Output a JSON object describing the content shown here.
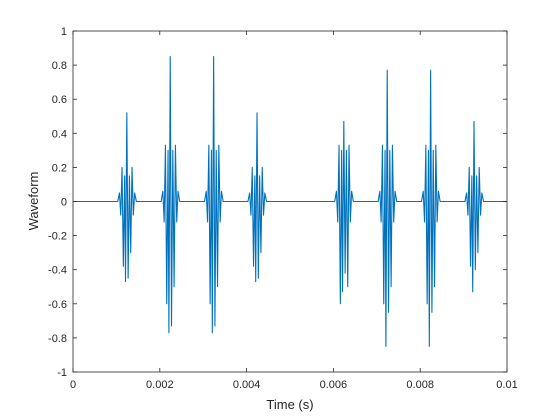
{
  "chart_data": {
    "type": "line",
    "title": "",
    "xlabel": "Time (s)",
    "ylabel": "Waveform",
    "xlim": [
      0,
      0.01
    ],
    "ylim": [
      -1,
      1
    ],
    "grid": false,
    "legend": "none",
    "x_ticks": [
      0,
      0.002,
      0.004,
      0.006,
      0.008,
      0.01
    ],
    "x_tick_labels": [
      "0",
      "0.002",
      "0.004",
      "0.006",
      "0.008",
      "0.01"
    ],
    "y_ticks": [
      -1,
      -0.8,
      -0.6,
      -0.4,
      -0.2,
      0,
      0.2,
      0.4,
      0.6,
      0.8,
      1
    ],
    "y_tick_labels": [
      "-1",
      "-0.8",
      "-0.6",
      "-0.4",
      "-0.2",
      "0",
      "0.2",
      "0.4",
      "0.6",
      "0.8",
      "1"
    ],
    "series_color": "#0072BD",
    "series": [
      {
        "points": [
          [
            0,
            0
          ],
          [
            0.00103,
            0
          ],
          [
            0.00107,
            0.05
          ],
          [
            0.0011,
            -0.08
          ],
          [
            0.00113,
            0.2
          ],
          [
            0.00116,
            -0.38
          ],
          [
            0.00119,
            0.15
          ],
          [
            0.00121,
            -0.47
          ],
          [
            0.00124,
            0.52
          ],
          [
            0.00127,
            -0.45
          ],
          [
            0.0013,
            0.15
          ],
          [
            0.00133,
            -0.3
          ],
          [
            0.00136,
            0.2
          ],
          [
            0.00139,
            -0.08
          ],
          [
            0.00142,
            0.05
          ],
          [
            0.00146,
            0
          ],
          [
            0.00203,
            0
          ],
          [
            0.00207,
            0.06
          ],
          [
            0.0021,
            -0.12
          ],
          [
            0.00213,
            0.33
          ],
          [
            0.00216,
            -0.6
          ],
          [
            0.00219,
            0.3
          ],
          [
            0.00221,
            -0.77
          ],
          [
            0.00224,
            0.85
          ],
          [
            0.00227,
            -0.73
          ],
          [
            0.0023,
            0.3
          ],
          [
            0.00233,
            -0.5
          ],
          [
            0.00236,
            0.33
          ],
          [
            0.00239,
            -0.12
          ],
          [
            0.00242,
            0.06
          ],
          [
            0.00246,
            0
          ],
          [
            0.00303,
            0
          ],
          [
            0.00307,
            0.06
          ],
          [
            0.0031,
            -0.12
          ],
          [
            0.00313,
            0.33
          ],
          [
            0.00316,
            -0.6
          ],
          [
            0.00319,
            0.3
          ],
          [
            0.00321,
            -0.77
          ],
          [
            0.00324,
            0.85
          ],
          [
            0.00327,
            -0.73
          ],
          [
            0.0033,
            0.3
          ],
          [
            0.00333,
            -0.5
          ],
          [
            0.00336,
            0.33
          ],
          [
            0.00339,
            -0.12
          ],
          [
            0.00342,
            0.06
          ],
          [
            0.00346,
            0
          ],
          [
            0.00403,
            0
          ],
          [
            0.00407,
            0.05
          ],
          [
            0.0041,
            -0.08
          ],
          [
            0.00413,
            0.2
          ],
          [
            0.00416,
            -0.38
          ],
          [
            0.00419,
            0.15
          ],
          [
            0.00421,
            -0.47
          ],
          [
            0.00424,
            0.52
          ],
          [
            0.00427,
            -0.45
          ],
          [
            0.0043,
            0.15
          ],
          [
            0.00433,
            -0.3
          ],
          [
            0.00436,
            0.2
          ],
          [
            0.00439,
            -0.08
          ],
          [
            0.00442,
            0.05
          ],
          [
            0.00446,
            0
          ],
          [
            0.00603,
            0
          ],
          [
            0.00607,
            0.06
          ],
          [
            0.0061,
            -0.12
          ],
          [
            0.00613,
            0.33
          ],
          [
            0.00616,
            -0.6
          ],
          [
            0.00619,
            0.3
          ],
          [
            0.00621,
            -0.53
          ],
          [
            0.00624,
            0.47
          ],
          [
            0.00627,
            -0.42
          ],
          [
            0.0063,
            0.3
          ],
          [
            0.00633,
            -0.5
          ],
          [
            0.00636,
            0.33
          ],
          [
            0.00639,
            -0.12
          ],
          [
            0.00642,
            0.06
          ],
          [
            0.00646,
            0
          ],
          [
            0.00703,
            0
          ],
          [
            0.00707,
            0.06
          ],
          [
            0.0071,
            -0.12
          ],
          [
            0.00713,
            0.33
          ],
          [
            0.00716,
            -0.6
          ],
          [
            0.00719,
            0.3
          ],
          [
            0.00721,
            -0.85
          ],
          [
            0.00724,
            0.77
          ],
          [
            0.00727,
            -0.65
          ],
          [
            0.0073,
            0.3
          ],
          [
            0.00733,
            -0.5
          ],
          [
            0.00736,
            0.33
          ],
          [
            0.00739,
            -0.12
          ],
          [
            0.00742,
            0.06
          ],
          [
            0.00746,
            0
          ],
          [
            0.00803,
            0
          ],
          [
            0.00807,
            0.06
          ],
          [
            0.0081,
            -0.12
          ],
          [
            0.00813,
            0.33
          ],
          [
            0.00816,
            -0.6
          ],
          [
            0.00819,
            0.3
          ],
          [
            0.00821,
            -0.85
          ],
          [
            0.00824,
            0.77
          ],
          [
            0.00827,
            -0.65
          ],
          [
            0.0083,
            0.3
          ],
          [
            0.00833,
            -0.5
          ],
          [
            0.00836,
            0.33
          ],
          [
            0.00839,
            -0.12
          ],
          [
            0.00842,
            0.06
          ],
          [
            0.00846,
            0
          ],
          [
            0.00903,
            0
          ],
          [
            0.00907,
            0.05
          ],
          [
            0.0091,
            -0.08
          ],
          [
            0.00913,
            0.2
          ],
          [
            0.00916,
            -0.38
          ],
          [
            0.00919,
            0.15
          ],
          [
            0.00921,
            -0.53
          ],
          [
            0.00924,
            0.47
          ],
          [
            0.00927,
            -0.4
          ],
          [
            0.0093,
            0.15
          ],
          [
            0.00933,
            -0.3
          ],
          [
            0.00936,
            0.2
          ],
          [
            0.00939,
            -0.08
          ],
          [
            0.00942,
            0.05
          ],
          [
            0.00946,
            0
          ],
          [
            0.01,
            0
          ]
        ]
      }
    ]
  }
}
